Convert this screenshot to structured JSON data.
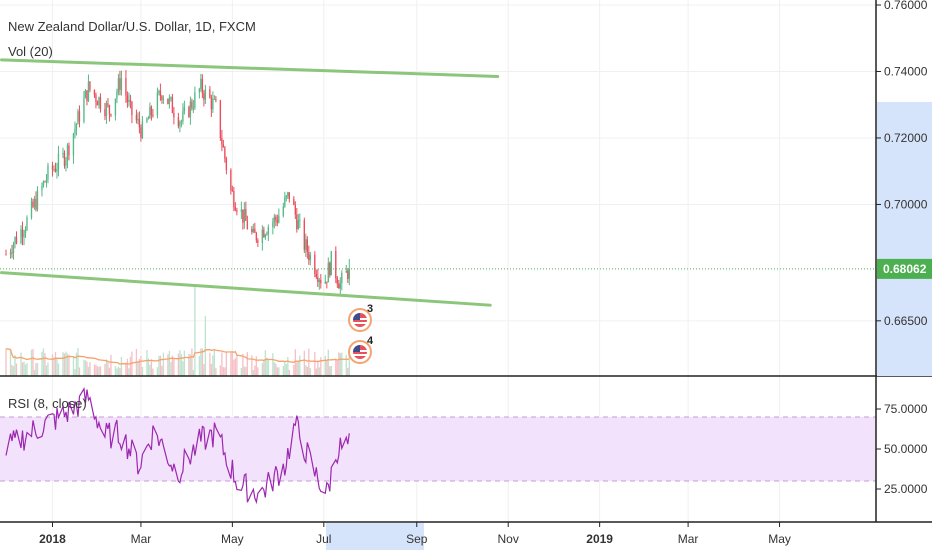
{
  "header": {
    "title": "New Zealand Dollar/U.S. Dollar, 1D, FXCM",
    "volume_label": "Vol (20)"
  },
  "rsi_panel": {
    "label": "RSI (8, close)"
  },
  "events": [
    {
      "label": "3",
      "icon": "us-flag-icon"
    },
    {
      "label": "4",
      "icon": "us-flag-icon"
    }
  ],
  "colors": {
    "up": "#53b987",
    "down": "#eb4d5c",
    "trendline": "#8bc67b",
    "rsi_line": "#9c27b0",
    "rsi_band": "#f3e2fb",
    "price_badge": "#4caf50",
    "volume_ma": "#f5a36b",
    "axis_highlight": "#d6e4fb"
  },
  "chart_data": [
    {
      "type": "candlestick",
      "title": "New Zealand Dollar/U.S. Dollar, 1D, FXCM",
      "x_tick_labels": [
        "2018",
        "Mar",
        "May",
        "Jul",
        "Sep",
        "Nov",
        "2019",
        "Mar",
        "May"
      ],
      "y_tick_labels": [
        "0.76000",
        "0.74000",
        "0.72000",
        "0.70000",
        "0.68062",
        "0.66500"
      ],
      "ylim": [
        0.6484,
        0.7615
      ],
      "last_price": "0.68062",
      "date_range": [
        "2017-12-01",
        "2019-06-15"
      ],
      "close_series": [
        {
          "date": "2017-12-01",
          "close": 0.685
        },
        {
          "date": "2017-12-15",
          "close": 0.695
        },
        {
          "date": "2017-12-29",
          "close": 0.709
        },
        {
          "date": "2018-01-10",
          "close": 0.715
        },
        {
          "date": "2018-01-25",
          "close": 0.735
        },
        {
          "date": "2018-02-08",
          "close": 0.728
        },
        {
          "date": "2018-02-16",
          "close": 0.738
        },
        {
          "date": "2018-02-22",
          "close": 0.728
        },
        {
          "date": "2018-03-02",
          "close": 0.722
        },
        {
          "date": "2018-03-15",
          "close": 0.734
        },
        {
          "date": "2018-03-28",
          "close": 0.725
        },
        {
          "date": "2018-04-10",
          "close": 0.735
        },
        {
          "date": "2018-04-20",
          "close": 0.729
        },
        {
          "date": "2018-04-30",
          "close": 0.704
        },
        {
          "date": "2018-05-15",
          "close": 0.69
        },
        {
          "date": "2018-05-31",
          "close": 0.696
        },
        {
          "date": "2018-06-08",
          "close": 0.703
        },
        {
          "date": "2018-06-18",
          "close": 0.688
        },
        {
          "date": "2018-07-01",
          "close": 0.676
        },
        {
          "date": "2018-07-06",
          "close": 0.683
        },
        {
          "date": "2018-07-12",
          "close": 0.676
        },
        {
          "date": "2018-07-18",
          "close": 0.6806
        }
      ],
      "trendlines": [
        {
          "name": "",
          "points": [
            [
              "2017-11-28",
              0.7435
            ],
            [
              "2018-10-25",
              0.7385
            ]
          ]
        },
        {
          "name": "",
          "points": [
            [
              "2017-11-28",
              0.6795
            ],
            [
              "2018-10-20",
              0.6697
            ]
          ]
        }
      ]
    },
    {
      "type": "line",
      "title": "RSI (8, close)",
      "y_tick_labels": [
        "75.0000",
        "50.0000",
        "25.0000"
      ],
      "ylim": [
        5,
        95
      ],
      "bands": [
        30,
        70
      ],
      "series": [
        {
          "name": "",
          "values": [
            {
              "date": "2017-12-01",
              "value": 50
            },
            {
              "date": "2017-12-20",
              "value": 62
            },
            {
              "date": "2018-01-10",
              "value": 72
            },
            {
              "date": "2018-01-25",
              "value": 82
            },
            {
              "date": "2018-02-05",
              "value": 58
            },
            {
              "date": "2018-02-15",
              "value": 60
            },
            {
              "date": "2018-02-28",
              "value": 40
            },
            {
              "date": "2018-03-10",
              "value": 62
            },
            {
              "date": "2018-03-25",
              "value": 35
            },
            {
              "date": "2018-04-10",
              "value": 55
            },
            {
              "date": "2018-04-20",
              "value": 60
            },
            {
              "date": "2018-05-05",
              "value": 28
            },
            {
              "date": "2018-05-20",
              "value": 22
            },
            {
              "date": "2018-06-05",
              "value": 40
            },
            {
              "date": "2018-06-12",
              "value": 65
            },
            {
              "date": "2018-06-25",
              "value": 35
            },
            {
              "date": "2018-07-03",
              "value": 22
            },
            {
              "date": "2018-07-10",
              "value": 50
            },
            {
              "date": "2018-07-18",
              "value": 52
            }
          ]
        }
      ]
    }
  ]
}
